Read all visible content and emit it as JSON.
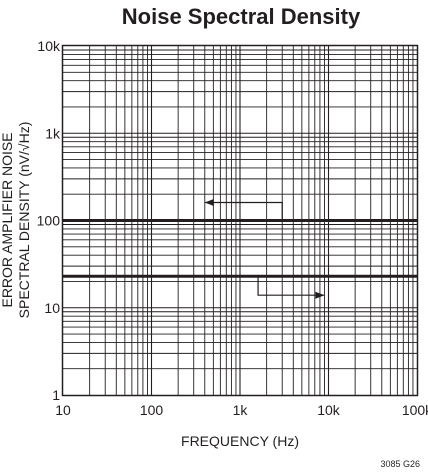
{
  "chart_data": {
    "type": "line",
    "title": "Noise Spectral Density",
    "xlabel": "FREQUENCY (Hz)",
    "ylabel_lines": [
      "ERROR AMPLIFIER NOISE",
      "SPECTRAL DENSITY (nV/√Hz)"
    ],
    "x_scale": "log",
    "y_scale": "log",
    "xlim": [
      10,
      100000
    ],
    "ylim": [
      1,
      10000
    ],
    "x_ticks": [
      10,
      100,
      1000,
      10000,
      100000
    ],
    "x_tick_labels": [
      "10",
      "100",
      "1k",
      "10k",
      "100k"
    ],
    "y_ticks": [
      1,
      10,
      100,
      1000,
      10000
    ],
    "y_tick_labels": [
      "1",
      "10",
      "100",
      "1k",
      "10k"
    ],
    "grid": true,
    "series": [
      {
        "x": [
          10,
          100000
        ],
        "values": [
          100,
          100
        ],
        "axis": "left"
      },
      {
        "x": [
          10,
          100000
        ],
        "values": [
          23,
          23
        ],
        "axis": "right"
      }
    ],
    "annotations": [
      {
        "type": "axis-arrow",
        "direction": "left",
        "series_index": 0
      },
      {
        "type": "axis-arrow",
        "direction": "right",
        "series_index": 1
      }
    ],
    "figure_code": "3085 G26"
  }
}
